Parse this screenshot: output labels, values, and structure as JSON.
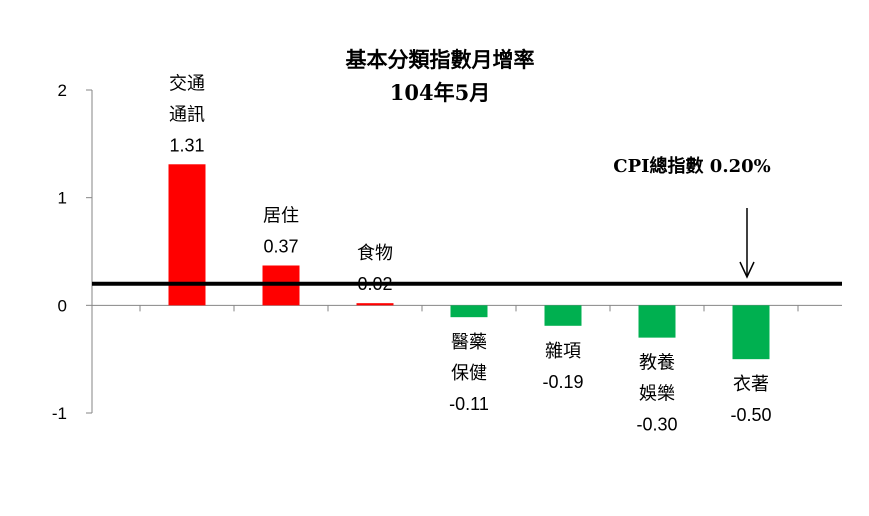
{
  "chart_data": {
    "type": "bar",
    "title": "基本分類指數月增率",
    "subtitle": "104年5月",
    "categories": [
      [
        "交通",
        "通訊"
      ],
      [
        "居住"
      ],
      [
        "食物"
      ],
      [
        "醫藥",
        "保健"
      ],
      [
        "雜項"
      ],
      [
        "教養",
        "娛樂"
      ],
      [
        "衣著"
      ]
    ],
    "values": [
      1.31,
      0.37,
      0.02,
      -0.11,
      -0.19,
      -0.3,
      -0.5
    ],
    "value_labels": [
      "1.31",
      "0.37",
      "0.02",
      "-0.11",
      "-0.19",
      "-0.30",
      "-0.50"
    ],
    "ylim": [
      -1,
      2
    ],
    "yticks": [
      "2",
      "1",
      "0",
      "-1"
    ],
    "reference_line": {
      "value": 0.2,
      "label": "CPI總指數  0.20%"
    },
    "colors": {
      "positive": "#ff0000",
      "negative": "#00b050",
      "reference": "#000000"
    },
    "grid": false
  }
}
